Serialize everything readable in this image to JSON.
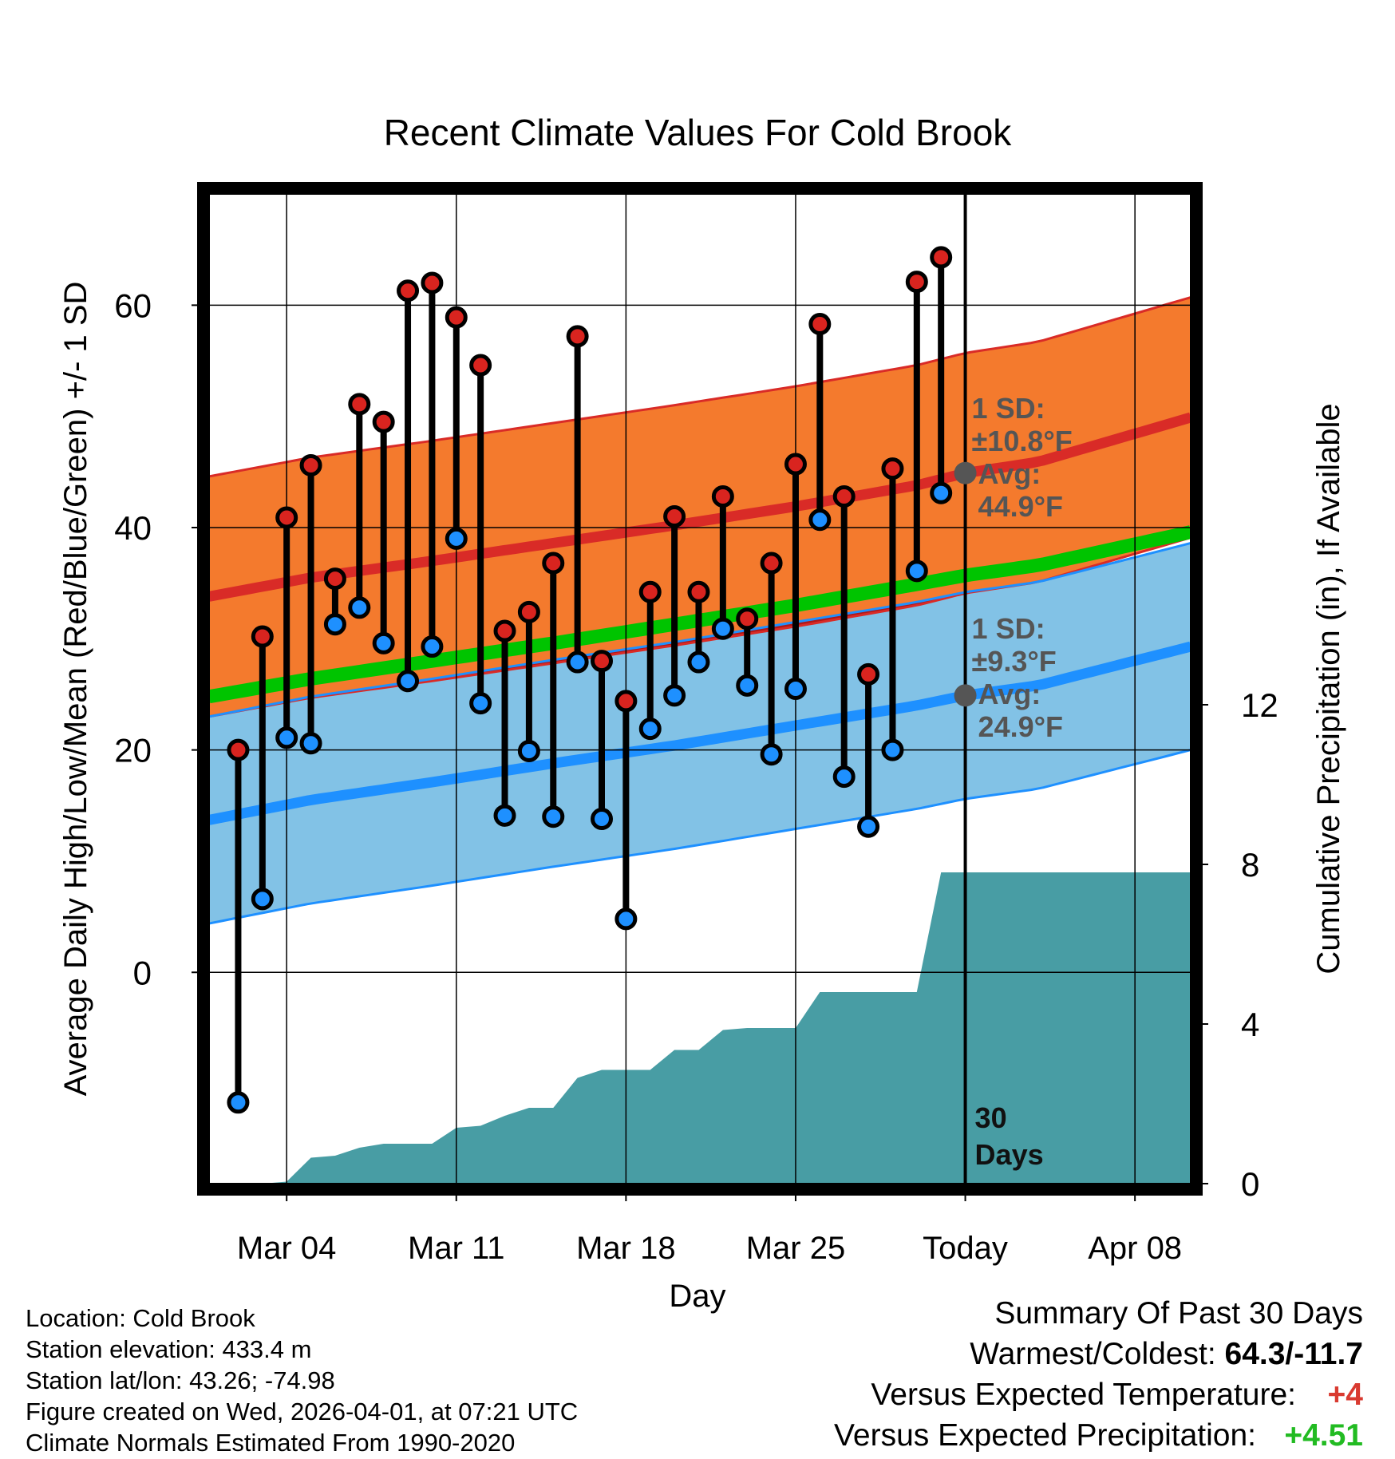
{
  "chart_data": {
    "type": "line",
    "title": "Recent Climate Values For Cold Brook",
    "xlabel": "Day",
    "ylabel_left": "Average Daily High/Low/Mean (Red/Blue/Green) +/- 1 SD",
    "ylabel_right": "Cumulative Precipitation (in), If Available",
    "x_ticks": [
      {
        "day": 4,
        "label": "Mar 04"
      },
      {
        "day": 11,
        "label": "Mar 11"
      },
      {
        "day": 18,
        "label": "Mar 18"
      },
      {
        "day": 25,
        "label": "Mar 25"
      },
      {
        "day": 32,
        "label": "Today"
      },
      {
        "day": 39,
        "label": "Apr 08"
      }
    ],
    "x_range": [
      0.8,
      41.3
    ],
    "y_left_ticks": [
      0,
      20,
      40,
      60
    ],
    "y_left_minor_ticks": [
      -10,
      10,
      30,
      50
    ],
    "y_left_range": [
      -19,
      70
    ],
    "y_right_ticks": [
      0,
      4,
      8,
      12
    ],
    "y_right_range": [
      0,
      24.8
    ],
    "today_day": 32,
    "today_label_line1": "30",
    "today_label_line2": "Days",
    "normal_high": {
      "days": [
        0.8,
        5,
        10,
        15,
        20,
        25,
        30,
        32,
        35,
        41.3
      ],
      "mean": [
        33.8,
        35.5,
        37.0,
        38.6,
        40.2,
        41.9,
        43.8,
        44.9,
        45.9,
        49.9
      ],
      "sd": 10.8,
      "label_sd": "1 SD:",
      "label_sd_value": "±10.8°F",
      "label_avg": "Avg:",
      "label_avg_value": "44.9°F"
    },
    "normal_low": {
      "days": [
        0.8,
        5,
        10,
        15,
        20,
        25,
        30,
        32,
        35,
        41.3
      ],
      "mean": [
        13.7,
        15.5,
        17.1,
        18.8,
        20.4,
        22.2,
        24.0,
        24.9,
        25.8,
        29.3
      ],
      "sd": 9.3,
      "label_sd": "1 SD:",
      "label_sd_value": "±9.3°F",
      "label_avg": "Avg:",
      "label_avg_value": "24.9°F"
    },
    "normal_mean": {
      "days": [
        0.8,
        5,
        10,
        15,
        20,
        25,
        30,
        32,
        35,
        41.3
      ],
      "values": [
        24.8,
        26.4,
        28.0,
        29.6,
        31.3,
        33.0,
        34.9,
        35.7,
        36.6,
        39.6
      ]
    },
    "series": [
      {
        "name": "Daily High",
        "color": "#d9241f",
        "values": [
          20.0,
          30.2,
          40.9,
          45.6,
          35.4,
          51.1,
          49.5,
          61.3,
          62.0,
          58.9,
          54.6,
          30.7,
          32.4,
          36.8,
          57.2,
          28.0,
          24.4,
          34.2,
          41.0,
          34.2,
          42.8,
          31.8,
          36.8,
          45.7,
          58.3,
          42.8,
          26.8,
          45.3,
          62.1,
          64.3
        ]
      },
      {
        "name": "Daily Low",
        "color": "#1e90ff",
        "values": [
          -11.7,
          6.6,
          21.1,
          20.6,
          31.3,
          32.8,
          29.6,
          26.2,
          29.3,
          39.0,
          24.2,
          14.1,
          19.9,
          14.0,
          27.9,
          13.8,
          4.8,
          21.9,
          24.9,
          27.9,
          30.9,
          25.8,
          19.6,
          25.5,
          40.7,
          17.6,
          13.1,
          20.0,
          36.1,
          43.1
        ]
      }
    ],
    "precipitation": {
      "days": [
        0.8,
        2.0,
        3.0,
        4.0,
        5.0,
        6.0,
        7.0,
        8.0,
        9.0,
        10.0,
        11.0,
        12.0,
        13.0,
        14.0,
        15.0,
        16.0,
        17.0,
        18.0,
        19.0,
        20.0,
        21.0,
        22.0,
        23.0,
        24.0,
        25.0,
        26.0,
        27.0,
        28.0,
        29.0,
        30.0,
        31.0,
        41.3
      ],
      "values": [
        0.0,
        0.0,
        0.0,
        0.05,
        0.65,
        0.7,
        0.9,
        1.0,
        1.0,
        1.0,
        1.4,
        1.45,
        1.7,
        1.9,
        1.9,
        2.65,
        2.85,
        2.85,
        2.85,
        3.35,
        3.35,
        3.85,
        3.9,
        3.9,
        3.9,
        4.8,
        4.8,
        4.8,
        4.8,
        4.8,
        7.8,
        7.8
      ]
    },
    "colors": {
      "high_band": "#f47a2d",
      "high_edge": "#d92b27",
      "high_mean": "#d92b27",
      "low_band": "#82c2e6",
      "low_edge": "#1e90ff",
      "low_mean": "#1e90ff",
      "mean_line": "#00c400",
      "overlap": "#b01818",
      "precip": "#489da4",
      "marker_today": "#555555",
      "label_text": "#555555"
    }
  },
  "info": {
    "location": "Location: Cold Brook",
    "elevation": "Station elevation: 433.4 m",
    "latlon": "Station lat/lon: 43.26; -74.98",
    "created": "Figure created on Wed, 2026-04-01, at 07:21 UTC",
    "normals": "Climate Normals Estimated From 1990-2020"
  },
  "summary": {
    "title": "Summary Of Past 30 Days",
    "warm_label": "Warmest/Coldest:",
    "warm_value": "64.3/-11.7",
    "temp_label": "Versus Expected Temperature:",
    "temp_value": "+4",
    "precip_label": "Versus Expected Precipitation:",
    "precip_value": "+4.51"
  }
}
